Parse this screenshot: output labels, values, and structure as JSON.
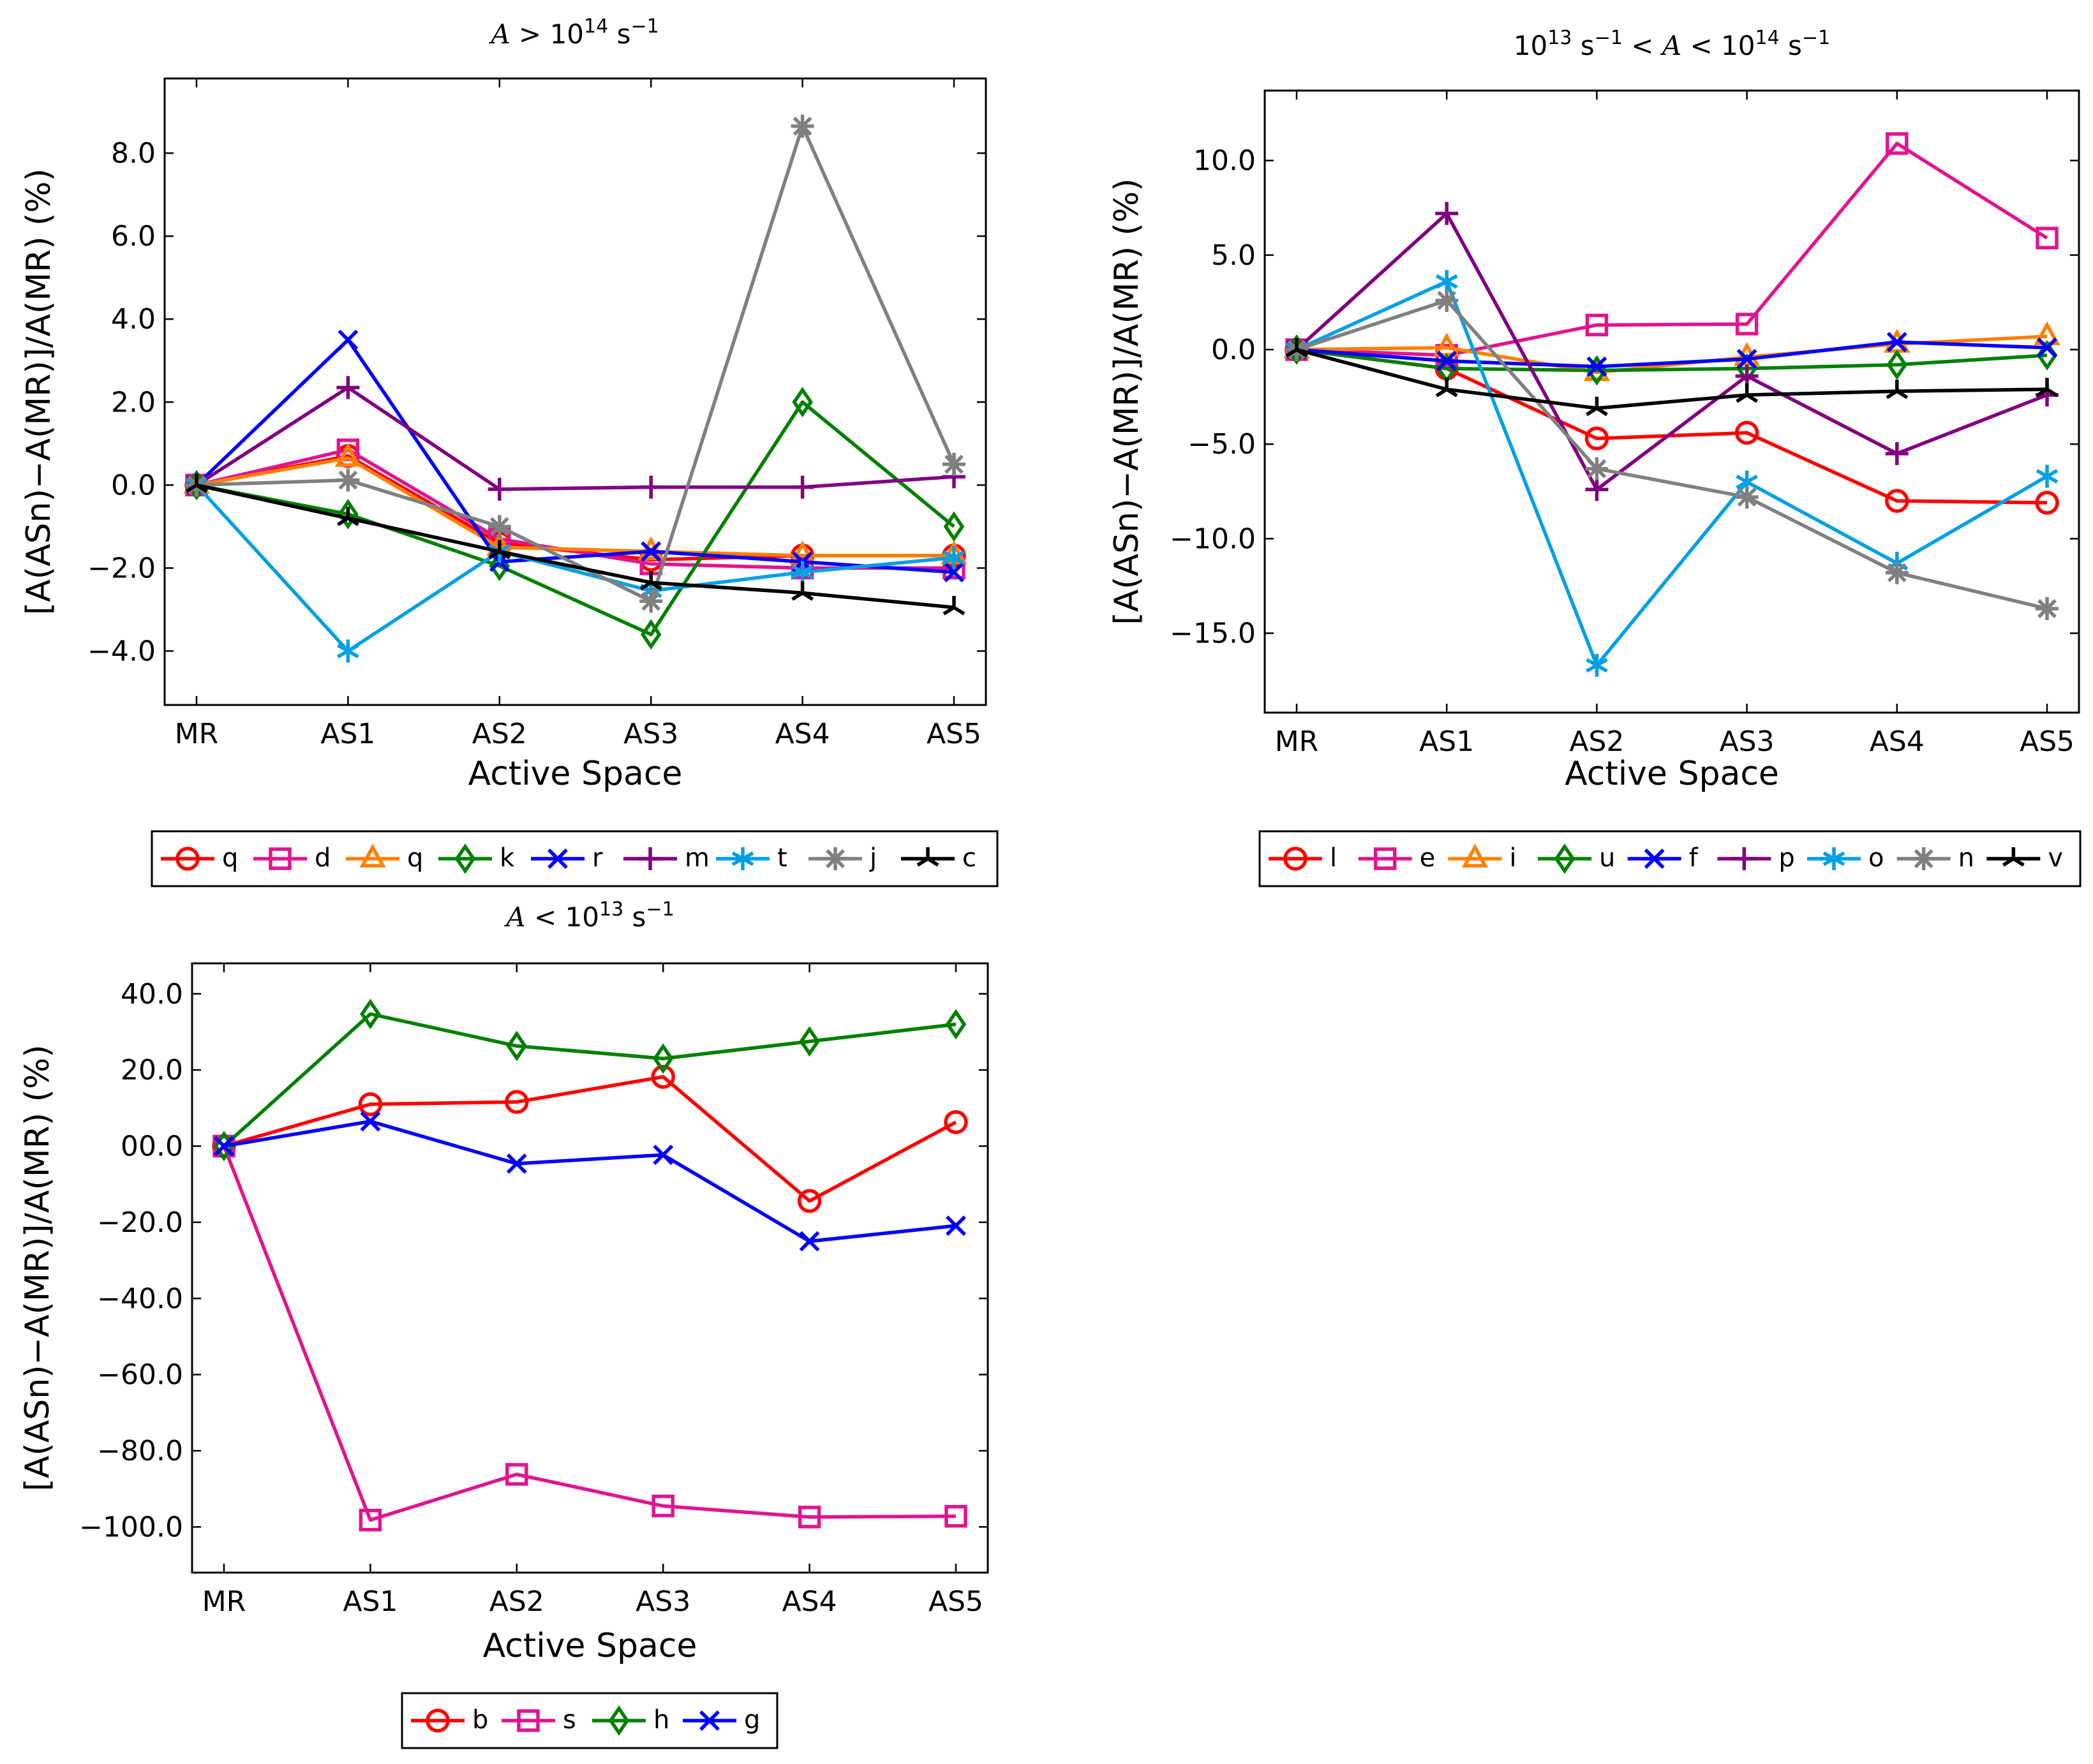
{
  "figure": {
    "x_categories": [
      "MR",
      "AS1",
      "AS2",
      "AS3",
      "AS4",
      "AS5"
    ]
  },
  "chart_data": [
    {
      "type": "line",
      "title": "A > 10^14 s−1",
      "title_parts": {
        "sym": "A",
        "op": ">",
        "base": "10",
        "exp": "14",
        "unit": "s",
        "unit_exp": "−1"
      },
      "xlabel": "Active Space",
      "ylabel": "[A(ASn)−A(MR)]/A(MR) (%)",
      "categories": [
        "MR",
        "AS1",
        "AS2",
        "AS3",
        "AS4",
        "AS5"
      ],
      "ylim": [
        -5.3,
        9.8
      ],
      "yticks": [
        -4,
        -2,
        0,
        2,
        4,
        6,
        8
      ],
      "ytick_labels": [
        "−4.0",
        "−2.0",
        "0.0",
        "2.0",
        "4.0",
        "6.0",
        "8.0"
      ],
      "legend_position": "below",
      "series": [
        {
          "name": "q",
          "color": "#ff0000",
          "marker": "circle",
          "values": [
            0,
            0.7,
            -1.4,
            -1.8,
            -1.7,
            -1.7
          ]
        },
        {
          "name": "d",
          "color": "#e0158f",
          "marker": "square",
          "values": [
            0,
            0.85,
            -1.3,
            -1.9,
            -2.0,
            -2.0
          ]
        },
        {
          "name": "q",
          "color": "#ff8000",
          "marker": "triangle",
          "values": [
            0,
            0.65,
            -1.5,
            -1.6,
            -1.7,
            -1.7
          ]
        },
        {
          "name": "k",
          "color": "#008000",
          "marker": "diamond",
          "values": [
            0,
            -0.7,
            -1.95,
            -3.6,
            2.0,
            -1.0
          ]
        },
        {
          "name": "r",
          "color": "#0000ff",
          "marker": "x",
          "values": [
            0,
            3.5,
            -1.85,
            -1.6,
            -1.85,
            -2.1
          ]
        },
        {
          "name": "m",
          "color": "#800080",
          "marker": "plus",
          "values": [
            0,
            2.35,
            -0.1,
            -0.05,
            -0.05,
            0.2
          ]
        },
        {
          "name": "t",
          "color": "#00a0e3",
          "marker": "star",
          "values": [
            0,
            -4.0,
            -1.6,
            -2.55,
            -2.1,
            -1.75
          ]
        },
        {
          "name": "j",
          "color": "#808080",
          "marker": "asterisk",
          "values": [
            0,
            0.12,
            -1.0,
            -2.8,
            8.65,
            0.5
          ]
        },
        {
          "name": "c",
          "color": "#000000",
          "marker": "tri",
          "values": [
            0,
            -0.8,
            -1.6,
            -2.35,
            -2.6,
            -2.95
          ]
        }
      ]
    },
    {
      "type": "line",
      "title": "10^13 s−1 < A < 10^14 s−1",
      "title_parts": {
        "sym": "A",
        "op": "<",
        "base": "10",
        "exp_low": "13",
        "exp_high": "14",
        "unit": "s",
        "unit_exp": "−1"
      },
      "xlabel": "Active Space",
      "ylabel": "[A(ASn)−A(MR)]/A(MR) (%)",
      "categories": [
        "MR",
        "AS1",
        "AS2",
        "AS3",
        "AS4",
        "AS5"
      ],
      "ylim": [
        -19.2,
        13.7
      ],
      "yticks": [
        -15,
        -10,
        -5,
        0,
        5,
        10
      ],
      "ytick_labels": [
        "−15.0",
        "−10.0",
        "−5.0",
        "0.0",
        "5.0",
        "10.0"
      ],
      "legend_position": "below",
      "series": [
        {
          "name": "l",
          "color": "#ff0000",
          "marker": "circle",
          "values": [
            0,
            -1.0,
            -4.7,
            -4.4,
            -8.0,
            -8.1
          ]
        },
        {
          "name": "e",
          "color": "#e0158f",
          "marker": "square",
          "values": [
            0,
            -0.3,
            1.3,
            1.35,
            10.9,
            5.9
          ]
        },
        {
          "name": "i",
          "color": "#ff8000",
          "marker": "triangle",
          "values": [
            0,
            0.1,
            -1.2,
            -0.4,
            0.3,
            0.7
          ]
        },
        {
          "name": "u",
          "color": "#008000",
          "marker": "diamond",
          "values": [
            0,
            -1.0,
            -1.1,
            -1.0,
            -0.8,
            -0.3
          ]
        },
        {
          "name": "f",
          "color": "#0000ff",
          "marker": "x",
          "values": [
            0,
            -0.6,
            -0.9,
            -0.5,
            0.4,
            0.1
          ]
        },
        {
          "name": "p",
          "color": "#800080",
          "marker": "plus",
          "values": [
            0,
            7.2,
            -7.4,
            -1.4,
            -5.5,
            -2.4
          ]
        },
        {
          "name": "o",
          "color": "#00a0e3",
          "marker": "star",
          "values": [
            0,
            3.6,
            -16.7,
            -7.0,
            -11.3,
            -6.7
          ]
        },
        {
          "name": "n",
          "color": "#808080",
          "marker": "asterisk",
          "values": [
            0,
            2.6,
            -6.3,
            -7.8,
            -11.8,
            -13.7
          ]
        },
        {
          "name": "v",
          "color": "#000000",
          "marker": "tri",
          "values": [
            0,
            -2.1,
            -3.1,
            -2.4,
            -2.2,
            -2.1
          ]
        }
      ]
    },
    {
      "type": "line",
      "title": "A < 10^13 s−1",
      "title_parts": {
        "sym": "A",
        "op": "<",
        "base": "10",
        "exp": "13",
        "unit": "s",
        "unit_exp": "−1"
      },
      "xlabel": "Active Space",
      "ylabel": "[A(ASn)−A(MR)]/A(MR) (%)",
      "categories": [
        "MR",
        "AS1",
        "AS2",
        "AS3",
        "AS4",
        "AS5"
      ],
      "ylim": [
        -112,
        48
      ],
      "yticks": [
        -100,
        -80,
        -60,
        -40,
        -20,
        0,
        20,
        40
      ],
      "ytick_labels": [
        "−100.0",
        "−80.0",
        "−60.0",
        "−40.0",
        "−20.0",
        "00.0",
        "20.0",
        "40.0"
      ],
      "legend_position": "below",
      "series": [
        {
          "name": "b",
          "color": "#ff0000",
          "marker": "circle",
          "values": [
            0,
            11,
            11.6,
            18.2,
            -14.4,
            6.3
          ]
        },
        {
          "name": "s",
          "color": "#e0158f",
          "marker": "square",
          "values": [
            0,
            -98.2,
            -86.2,
            -94.5,
            -97.4,
            -97.2
          ]
        },
        {
          "name": "h",
          "color": "#008000",
          "marker": "diamond",
          "values": [
            0,
            34.7,
            26.3,
            23.0,
            27.5,
            32.0
          ]
        },
        {
          "name": "g",
          "color": "#0000ff",
          "marker": "x",
          "values": [
            0,
            6.5,
            -4.6,
            -2.3,
            -25.0,
            -20.9
          ]
        }
      ]
    }
  ]
}
